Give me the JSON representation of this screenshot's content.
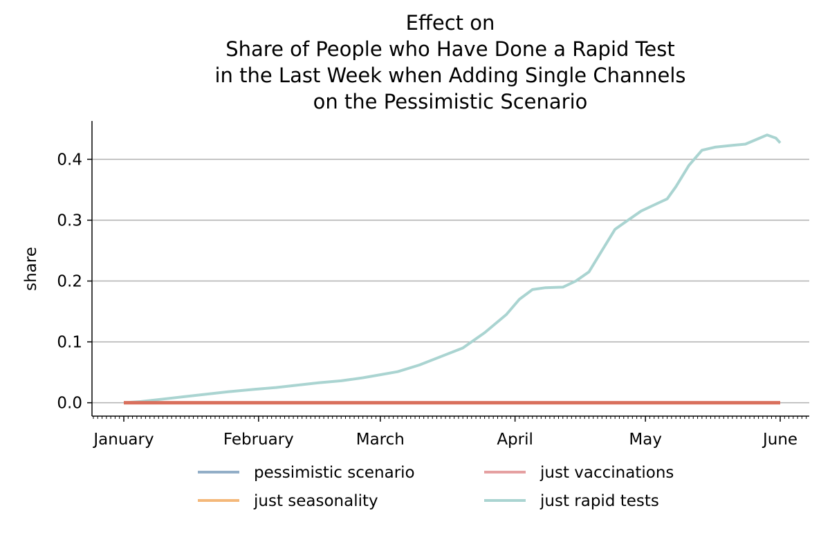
{
  "chart_data": {
    "type": "line",
    "title_lines": [
      "Effect on",
      "Share of People who Have Done a Rapid Test",
      "in the Last Week when Adding Single Channels",
      "on the Pessimistic Scenario"
    ],
    "ylabel": "share",
    "xlabel": "",
    "x_range": [
      "2021-01-01",
      "2021-06-01"
    ],
    "ylim": [
      -0.022,
      0.463
    ],
    "yticks": [
      0.0,
      0.1,
      0.2,
      0.3,
      0.4
    ],
    "ytick_labels": [
      "0.0",
      "0.1",
      "0.2",
      "0.3",
      "0.4"
    ],
    "xticks": [
      "2021-01-01",
      "2021-02-01",
      "2021-03-01",
      "2021-04-01",
      "2021-05-01",
      "2021-06-01"
    ],
    "xtick_labels": [
      "January",
      "February",
      "March",
      "April",
      "May",
      "June"
    ],
    "grid": "horizontal",
    "legend_placement": "below",
    "series": [
      {
        "name": "pessimistic scenario",
        "color": "#92aec7",
        "points": [
          [
            "2021-01-01",
            0.0
          ],
          [
            "2021-05-31",
            0.0
          ]
        ]
      },
      {
        "name": "just seasonality",
        "color": "#f4b87a",
        "points": [
          [
            "2021-01-01",
            0.0
          ],
          [
            "2021-05-31",
            0.0
          ]
        ]
      },
      {
        "name": "just vaccinations",
        "color": "#e5a0a1",
        "points": [
          [
            "2021-01-01",
            0.0
          ],
          [
            "2021-05-31",
            0.0
          ]
        ]
      },
      {
        "name": "just rapid tests",
        "color": "#aad4d1",
        "points": [
          [
            "2021-01-01",
            0.0
          ],
          [
            "2021-01-05",
            0.002
          ],
          [
            "2021-01-10",
            0.006
          ],
          [
            "2021-01-15",
            0.01
          ],
          [
            "2021-01-20",
            0.014
          ],
          [
            "2021-01-25",
            0.018
          ],
          [
            "2021-01-31",
            0.022
          ],
          [
            "2021-02-05",
            0.025
          ],
          [
            "2021-02-10",
            0.029
          ],
          [
            "2021-02-15",
            0.033
          ],
          [
            "2021-02-20",
            0.036
          ],
          [
            "2021-02-25",
            0.041
          ],
          [
            "2021-03-01",
            0.046
          ],
          [
            "2021-03-05",
            0.051
          ],
          [
            "2021-03-10",
            0.062
          ],
          [
            "2021-03-15",
            0.076
          ],
          [
            "2021-03-20",
            0.09
          ],
          [
            "2021-03-25",
            0.115
          ],
          [
            "2021-03-30",
            0.145
          ],
          [
            "2021-04-02",
            0.17
          ],
          [
            "2021-04-05",
            0.186
          ],
          [
            "2021-04-08",
            0.189
          ],
          [
            "2021-04-12",
            0.19
          ],
          [
            "2021-04-15",
            0.2
          ],
          [
            "2021-04-18",
            0.215
          ],
          [
            "2021-04-21",
            0.25
          ],
          [
            "2021-04-24",
            0.285
          ],
          [
            "2021-04-27",
            0.3
          ],
          [
            "2021-04-30",
            0.315
          ],
          [
            "2021-05-03",
            0.325
          ],
          [
            "2021-05-06",
            0.335
          ],
          [
            "2021-05-08",
            0.355
          ],
          [
            "2021-05-11",
            0.39
          ],
          [
            "2021-05-14",
            0.415
          ],
          [
            "2021-05-17",
            0.42
          ],
          [
            "2021-05-21",
            0.423
          ],
          [
            "2021-05-24",
            0.425
          ],
          [
            "2021-05-27",
            0.434
          ],
          [
            "2021-05-29",
            0.44
          ],
          [
            "2021-05-31",
            0.435
          ],
          [
            "2021-06-01",
            0.427
          ]
        ]
      }
    ],
    "overlay_line": {
      "color": "#d9705d",
      "points": [
        [
          "2021-01-01",
          0.0
        ],
        [
          "2021-06-01",
          0.0
        ]
      ]
    }
  }
}
